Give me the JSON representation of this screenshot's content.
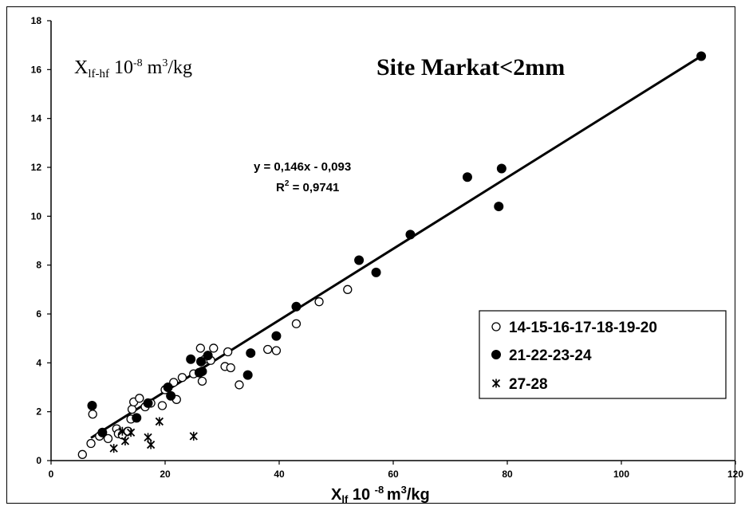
{
  "chart_data": {
    "type": "scatter",
    "title": "Site Markat<2mm",
    "ylabel": {
      "main": "X",
      "sub": "lf-hf",
      "rest": " 10",
      "exp": "-8",
      "unit": " m",
      "unit_exp": "3",
      "tail": "/kg"
    },
    "xlabel": {
      "main": "X",
      "sub": "lf",
      "rest": " 10 ",
      "exp": "-8 ",
      "unit": "m",
      "unit_exp": "3",
      "tail": "/kg"
    },
    "xlim": [
      0,
      120
    ],
    "ylim": [
      0,
      18
    ],
    "xticks": [
      "0",
      "20",
      "40",
      "60",
      "80",
      "100",
      "120"
    ],
    "yticks": [
      "0",
      "2",
      "4",
      "6",
      "8",
      "10",
      "12",
      "14",
      "16",
      "18"
    ],
    "grid": false,
    "legend_position": "right",
    "equation": "y = 0,146x - 0,093",
    "r2": {
      "label": "R",
      "exp": "2",
      "value": " = 0,9741"
    },
    "trendline": {
      "slope": 0.146,
      "intercept": -0.093,
      "x_range": [
        7,
        114
      ]
    },
    "series": [
      {
        "name": "14-15-16-17-18-19-20",
        "marker": "open-circle",
        "points": [
          [
            5.5,
            0.25
          ],
          [
            7,
            0.7
          ],
          [
            7.3,
            1.9
          ],
          [
            8.5,
            1.0
          ],
          [
            10,
            0.9
          ],
          [
            11.5,
            1.3
          ],
          [
            11.8,
            1.1
          ],
          [
            12.5,
            1.05
          ],
          [
            13.5,
            1.2
          ],
          [
            14,
            1.7
          ],
          [
            14.2,
            2.1
          ],
          [
            14.5,
            2.4
          ],
          [
            15.5,
            2.55
          ],
          [
            16.5,
            2.2
          ],
          [
            17.5,
            2.35
          ],
          [
            19.5,
            2.25
          ],
          [
            20,
            2.9
          ],
          [
            21.5,
            3.2
          ],
          [
            22,
            2.5
          ],
          [
            23,
            3.4
          ],
          [
            25,
            3.55
          ],
          [
            26.2,
            4.6
          ],
          [
            26.5,
            3.25
          ],
          [
            27,
            4.15
          ],
          [
            28,
            4.1
          ],
          [
            28.5,
            4.6
          ],
          [
            30.5,
            3.85
          ],
          [
            31,
            4.45
          ],
          [
            31.5,
            3.8
          ],
          [
            33,
            3.1
          ],
          [
            38,
            4.55
          ],
          [
            39.5,
            4.5
          ],
          [
            43,
            5.6
          ],
          [
            47,
            6.5
          ],
          [
            52,
            7.0
          ]
        ]
      },
      {
        "name": "21-22-23-24",
        "marker": "filled-circle",
        "points": [
          [
            7.2,
            2.25
          ],
          [
            9,
            1.15
          ],
          [
            15,
            1.75
          ],
          [
            17,
            2.35
          ],
          [
            20.5,
            3.0
          ],
          [
            21,
            2.65
          ],
          [
            24.5,
            4.15
          ],
          [
            26,
            3.6
          ],
          [
            26.3,
            4.05
          ],
          [
            26.5,
            3.65
          ],
          [
            27.5,
            4.3
          ],
          [
            34.5,
            3.5
          ],
          [
            35,
            4.4
          ],
          [
            39.5,
            5.1
          ],
          [
            43,
            6.3
          ],
          [
            54,
            8.2
          ],
          [
            57,
            7.7
          ],
          [
            63,
            9.25
          ],
          [
            73,
            11.6
          ],
          [
            78.5,
            10.4
          ],
          [
            79,
            11.95
          ],
          [
            114,
            16.55
          ]
        ]
      },
      {
        "name": "27-28",
        "marker": "star",
        "points": [
          [
            11,
            0.5
          ],
          [
            12.5,
            1.2
          ],
          [
            13,
            0.8
          ],
          [
            14,
            1.15
          ],
          [
            17,
            0.95
          ],
          [
            17.5,
            0.65
          ],
          [
            19,
            1.6
          ],
          [
            25,
            1.0
          ]
        ]
      }
    ]
  }
}
